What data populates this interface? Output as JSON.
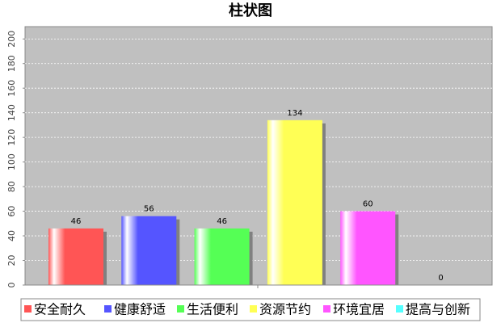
{
  "chart_data": {
    "type": "bar",
    "title": "柱状图",
    "categories": [
      null
    ],
    "series": [
      {
        "name": "安全耐久",
        "color": "#ff5555",
        "values": [
          46
        ]
      },
      {
        "name": "健康舒适",
        "color": "#5555ff",
        "values": [
          56
        ]
      },
      {
        "name": "生活便利",
        "color": "#55ff55",
        "values": [
          46
        ]
      },
      {
        "name": "资源节约",
        "color": "#ffff55",
        "values": [
          134
        ]
      },
      {
        "name": "环境宜居",
        "color": "#ff55ff",
        "values": [
          60
        ]
      },
      {
        "name": "提高与创新",
        "color": "#55ffff",
        "values": [
          0
        ]
      }
    ],
    "ylim": [
      0,
      210
    ],
    "yticks": [
      0,
      20,
      40,
      60,
      80,
      100,
      120,
      140,
      160,
      180,
      200
    ],
    "grid": true
  }
}
